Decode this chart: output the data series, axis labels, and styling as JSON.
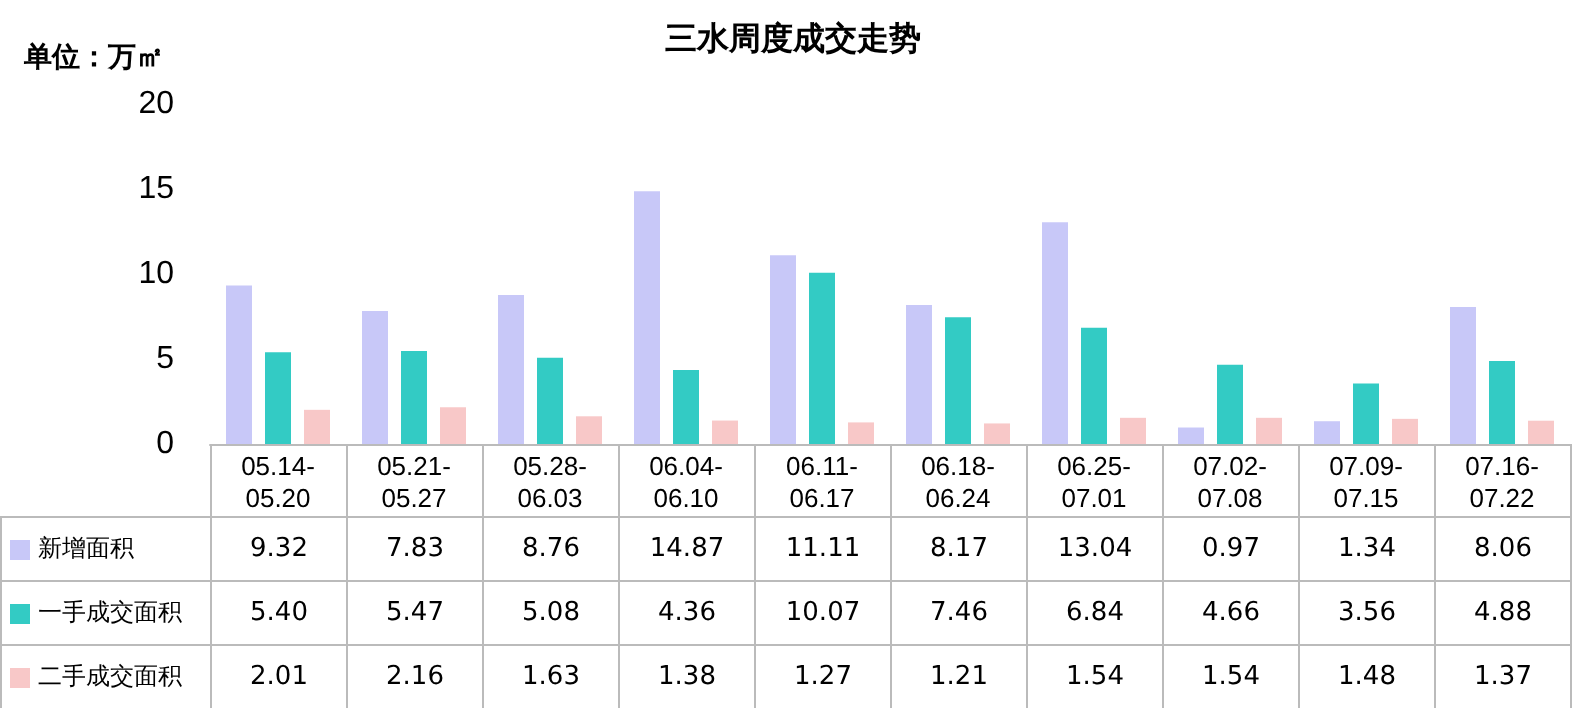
{
  "chart_data": {
    "type": "bar",
    "title": "三水周度成交走势",
    "ylabel": "单位：万㎡",
    "categories": [
      "05.14-05.20",
      "05.21-05.27",
      "05.28-06.03",
      "06.04-06.10",
      "06.11-06.17",
      "06.18-06.24",
      "06.25-07.01",
      "07.02-07.08",
      "07.09-07.15",
      "07.16-07.22"
    ],
    "series": [
      {
        "name": "新增面积",
        "color": "#c8c8f8",
        "values": [
          9.32,
          7.83,
          8.76,
          14.87,
          11.11,
          8.17,
          13.04,
          0.97,
          1.34,
          8.06
        ],
        "value_labels": [
          "9.32",
          "7.83",
          "8.76",
          "14.87",
          "11.11",
          "8.17",
          "13.04",
          "0.97",
          "1.34",
          "8.06"
        ]
      },
      {
        "name": "一手成交面积",
        "color": "#33cbc4",
        "values": [
          5.4,
          5.47,
          5.08,
          4.36,
          10.07,
          7.46,
          6.84,
          4.66,
          3.56,
          4.88
        ],
        "value_labels": [
          "5.40",
          "5.47",
          "5.08",
          "4.36",
          "10.07",
          "7.46",
          "6.84",
          "4.66",
          "3.56",
          "4.88"
        ]
      },
      {
        "name": "二手成交面积",
        "color": "#f8c8c8",
        "values": [
          2.01,
          2.16,
          1.63,
          1.38,
          1.27,
          1.21,
          1.54,
          1.54,
          1.48,
          1.37
        ],
        "value_labels": [
          "2.01",
          "2.16",
          "1.63",
          "1.38",
          "1.27",
          "1.21",
          "1.54",
          "1.54",
          "1.48",
          "1.37"
        ]
      }
    ],
    "ylim": [
      0,
      20
    ],
    "yticks": [
      0,
      5,
      10,
      15,
      20
    ],
    "grid": false,
    "legend": "bottom left"
  }
}
